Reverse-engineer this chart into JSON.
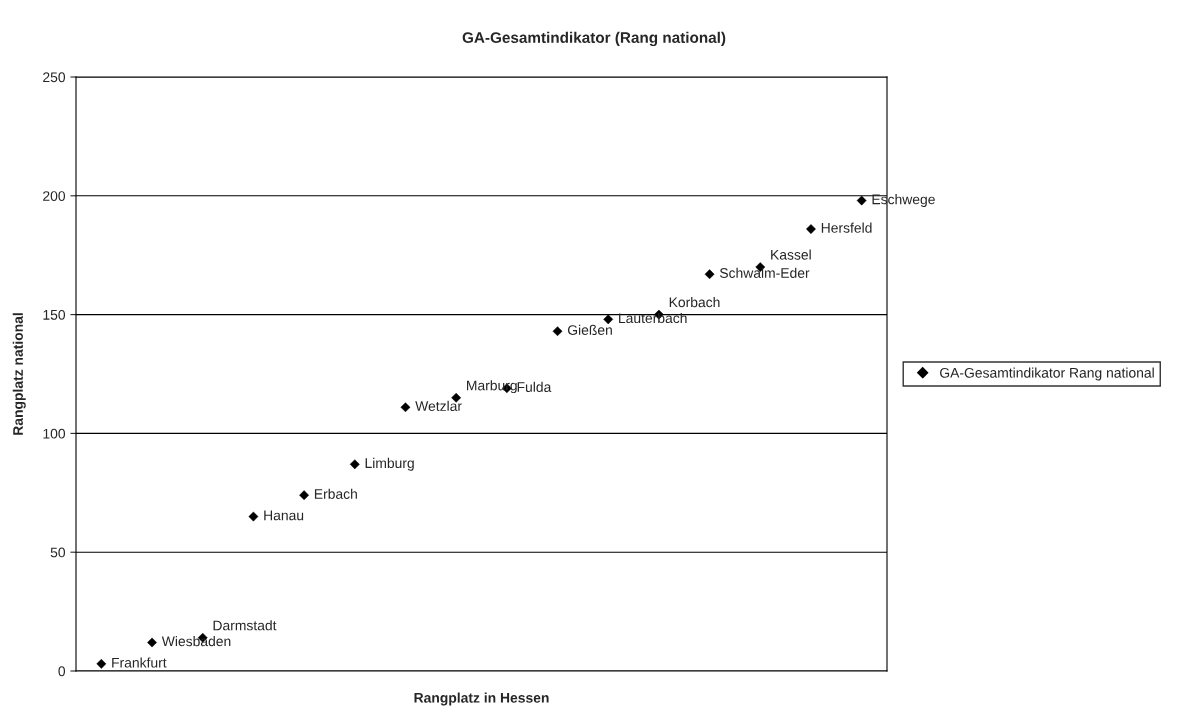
{
  "chart_data": {
    "type": "scatter",
    "title": "GA-Gesamtindikator (Rang national)",
    "xlabel": "Rangplatz in Hessen",
    "ylabel": "Rangplatz national",
    "categories": [
      null,
      null,
      null,
      null,
      null,
      null,
      null,
      null,
      null,
      null,
      null,
      null,
      null,
      null,
      null,
      null
    ],
    "series": [
      {
        "name": "GA-Gesamtindikator Rang national",
        "color": "#000000",
        "values": [
          3,
          12,
          14,
          65,
          74,
          87,
          111,
          115,
          119,
          143,
          148,
          150,
          167,
          170,
          186,
          198
        ],
        "value_labels": [
          "Frankfurt",
          "Wiesbaden",
          "Darmstadt",
          "Hanau",
          "Erbach",
          "Limburg",
          "Wetzlar",
          "Marburg",
          "Fulda",
          "Gießen",
          "Lauterbach",
          "Korbach",
          "Schwalm-Eder",
          "Kassel",
          "Hersfeld",
          "Eschwege"
        ]
      }
    ],
    "ylim": [
      0,
      250
    ],
    "yticks": [
      0,
      50,
      100,
      150,
      200,
      250
    ],
    "grid": "y",
    "legend": "right",
    "marker": "diamond"
  }
}
